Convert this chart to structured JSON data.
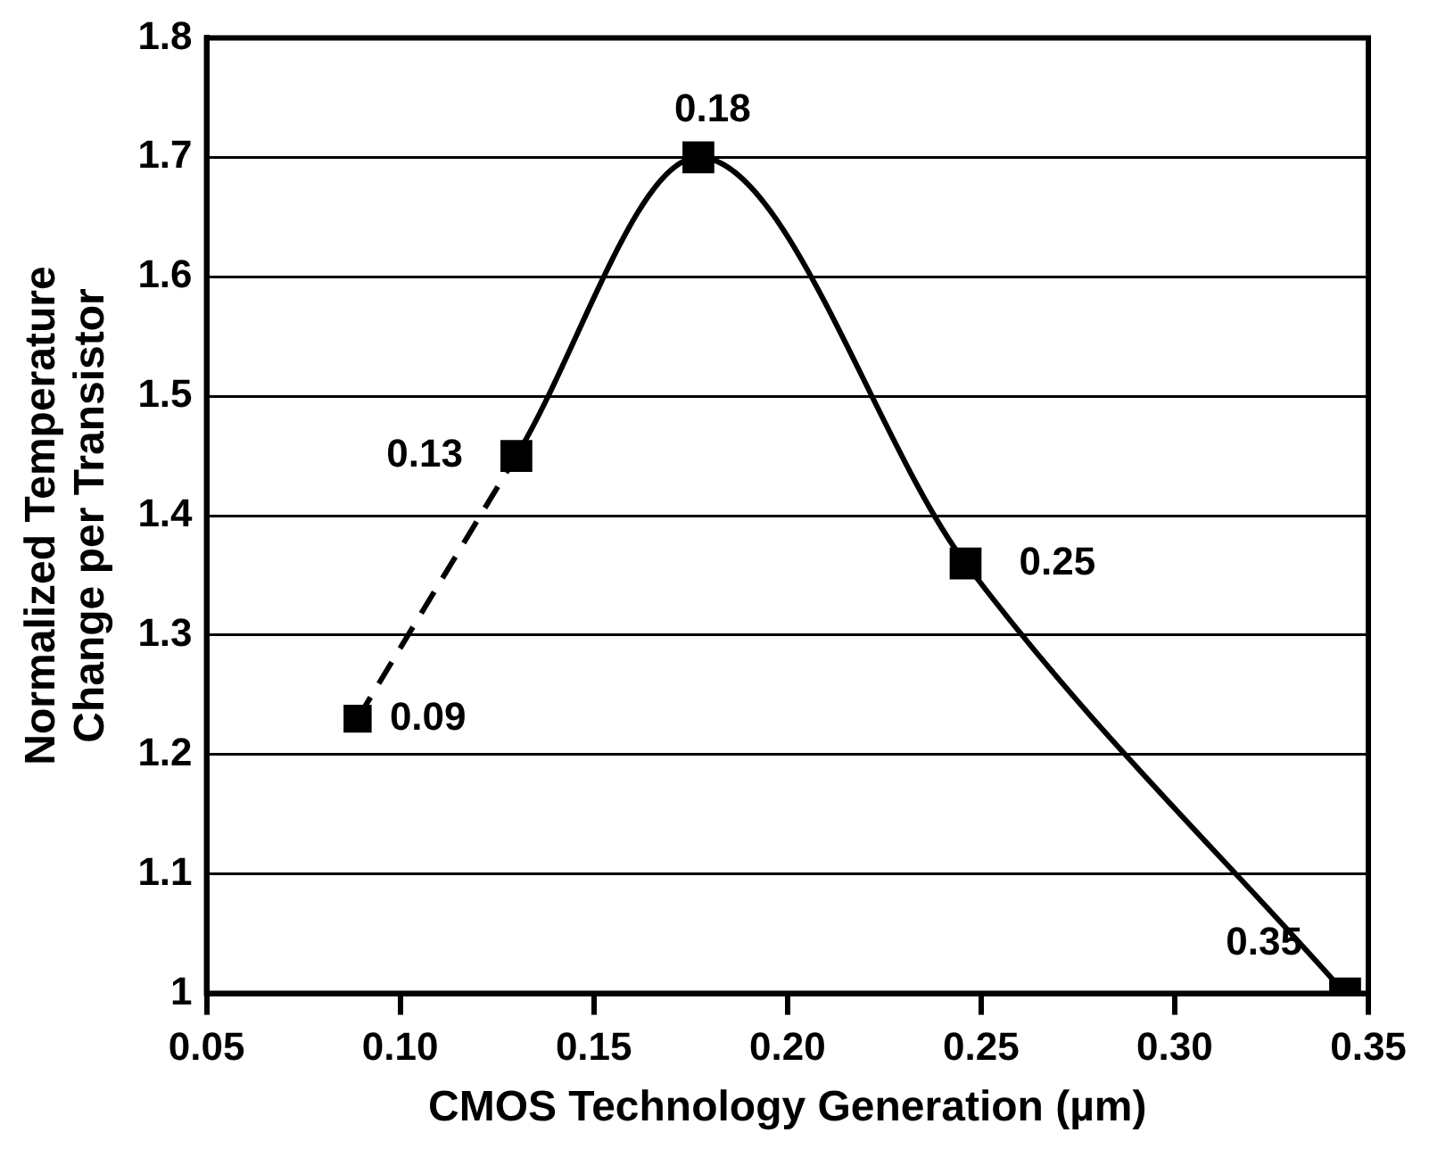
{
  "chart_data": {
    "type": "line",
    "xlabel": "CMOS Technology Generation (µm)",
    "ylabel": "Normalized Temperature\nChange per Transistor",
    "xlim": [
      0.05,
      0.35
    ],
    "xticks": [
      {
        "value": 0.05,
        "label": "0.05"
      },
      {
        "value": 0.1,
        "label": "0.10"
      },
      {
        "value": 0.15,
        "label": "0.15"
      },
      {
        "value": 0.2,
        "label": "0.20"
      },
      {
        "value": 0.25,
        "label": "0.25"
      },
      {
        "value": 0.3,
        "label": "0.30"
      },
      {
        "value": 0.35,
        "label": "0.35"
      }
    ],
    "ylim": [
      1,
      1.8
    ],
    "yticks": [
      1,
      1.1,
      1.2,
      1.3,
      1.4,
      1.5,
      1.6,
      1.7,
      1.8
    ],
    "series": [
      {
        "color": "#000000",
        "x": [
          0.089,
          0.13
        ],
        "values": [
          1.23,
          1.45
        ],
        "line_style": "dashed"
      },
      {
        "color": "#000000",
        "x": [
          0.13,
          0.177,
          0.246,
          0.344
        ],
        "values": [
          1.45,
          1.7,
          1.36,
          1
        ],
        "line_style": "solid"
      }
    ],
    "annotations": [
      {
        "text": "0.09",
        "x": 0.089,
        "y": 1.23
      },
      {
        "text": "0.13",
        "x": 0.13,
        "y": 1.45
      },
      {
        "text": "0.18",
        "x": 0.177,
        "y": 1.7
      },
      {
        "text": "0.25",
        "x": 0.246,
        "y": 1.36
      },
      {
        "text": "0.35",
        "x": 0.344,
        "y": 1
      }
    ],
    "grid": "y",
    "marker": "square",
    "legend": false
  }
}
